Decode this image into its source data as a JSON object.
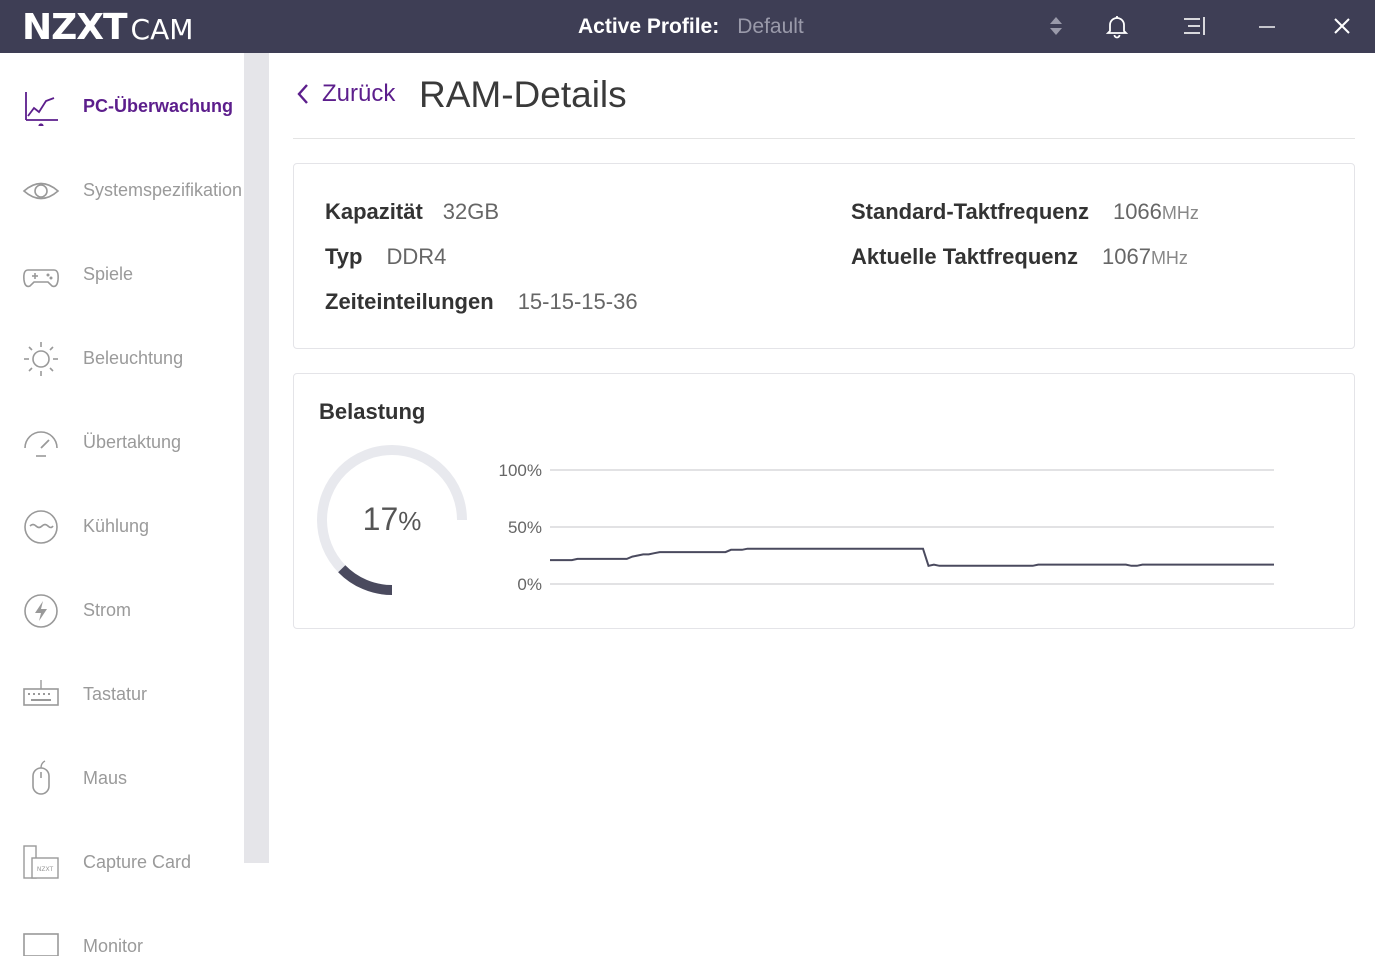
{
  "app": {
    "logo_main": "NZXT",
    "logo_sub": "CAM",
    "profile_label": "Active Profile:",
    "profile_value": "Default"
  },
  "sidebar": {
    "items": [
      {
        "label": "PC-Überwachung",
        "icon": "line-chart-icon",
        "active": true
      },
      {
        "label": "Systemspezifikation",
        "icon": "eye-icon"
      },
      {
        "label": "Spiele",
        "icon": "gamepad-icon"
      },
      {
        "label": "Beleuchtung",
        "icon": "sun-icon"
      },
      {
        "label": "Übertaktung",
        "icon": "speedometer-icon"
      },
      {
        "label": "Kühlung",
        "icon": "water-icon"
      },
      {
        "label": "Strom",
        "icon": "lightning-icon"
      },
      {
        "label": "Tastatur",
        "icon": "keyboard-icon"
      },
      {
        "label": "Maus",
        "icon": "mouse-icon"
      },
      {
        "label": "Capture Card",
        "icon": "capture-card-icon"
      },
      {
        "label": "Monitor",
        "icon": "monitor-icon"
      }
    ]
  },
  "main": {
    "back_label": "Zurück",
    "title": "RAM-Details",
    "specs": {
      "capacity_label": "Kapazität",
      "capacity_value": "32GB",
      "type_label": "Typ",
      "type_value": "DDR4",
      "timings_label": "Zeiteinteilungen",
      "timings_value": "15-15-15-36",
      "std_clock_label": "Standard-Taktfrequenz",
      "std_clock_value": "1066",
      "std_clock_unit": "MHz",
      "cur_clock_label": "Aktuelle Taktfrequenz",
      "cur_clock_value": "1067",
      "cur_clock_unit": "MHz"
    },
    "load": {
      "title": "Belastung",
      "percent_value": 17,
      "percent_number": "17",
      "percent_sign": "%"
    }
  },
  "colors": {
    "titlebar": "#3e3e55",
    "accent": "#5c1e8c",
    "gauge_track": "#e8e9ee",
    "gauge_fill": "#4a4a5e",
    "line": "#4a4a5e",
    "grid": "#d8d8dc"
  },
  "chart_data": {
    "type": "line",
    "title": "",
    "xlabel": "",
    "ylabel": "",
    "ylim": [
      0,
      100
    ],
    "yticks": [
      "0%",
      "50%",
      "100%"
    ],
    "grid": true,
    "series": [
      {
        "values": [
          21,
          21,
          21,
          21,
          21,
          22,
          22,
          22,
          22,
          22,
          22,
          22,
          22,
          22,
          22,
          24,
          25,
          26,
          26,
          27,
          28,
          28,
          28,
          28,
          28,
          28,
          28,
          28,
          28,
          28,
          28,
          28,
          28,
          30,
          30,
          30,
          31,
          31,
          31,
          31,
          31,
          31,
          31,
          31,
          31,
          31,
          31,
          31,
          31,
          31,
          31,
          31,
          31,
          31,
          31,
          31,
          31,
          31,
          31,
          31,
          31,
          31,
          31,
          31,
          31,
          31,
          31,
          31,
          31,
          16,
          17,
          16,
          16,
          16,
          16,
          16,
          16,
          16,
          16,
          16,
          16,
          16,
          16,
          16,
          16,
          16,
          16,
          16,
          16,
          17,
          17,
          17,
          17,
          17,
          17,
          17,
          17,
          17,
          17,
          17,
          17,
          17,
          17,
          17,
          17,
          17,
          16,
          16,
          17,
          17,
          17,
          17,
          17,
          17,
          17,
          17,
          17,
          17,
          17,
          17,
          17,
          17,
          17,
          17,
          17,
          17,
          17,
          17,
          17,
          17,
          17,
          17,
          17
        ]
      }
    ]
  }
}
